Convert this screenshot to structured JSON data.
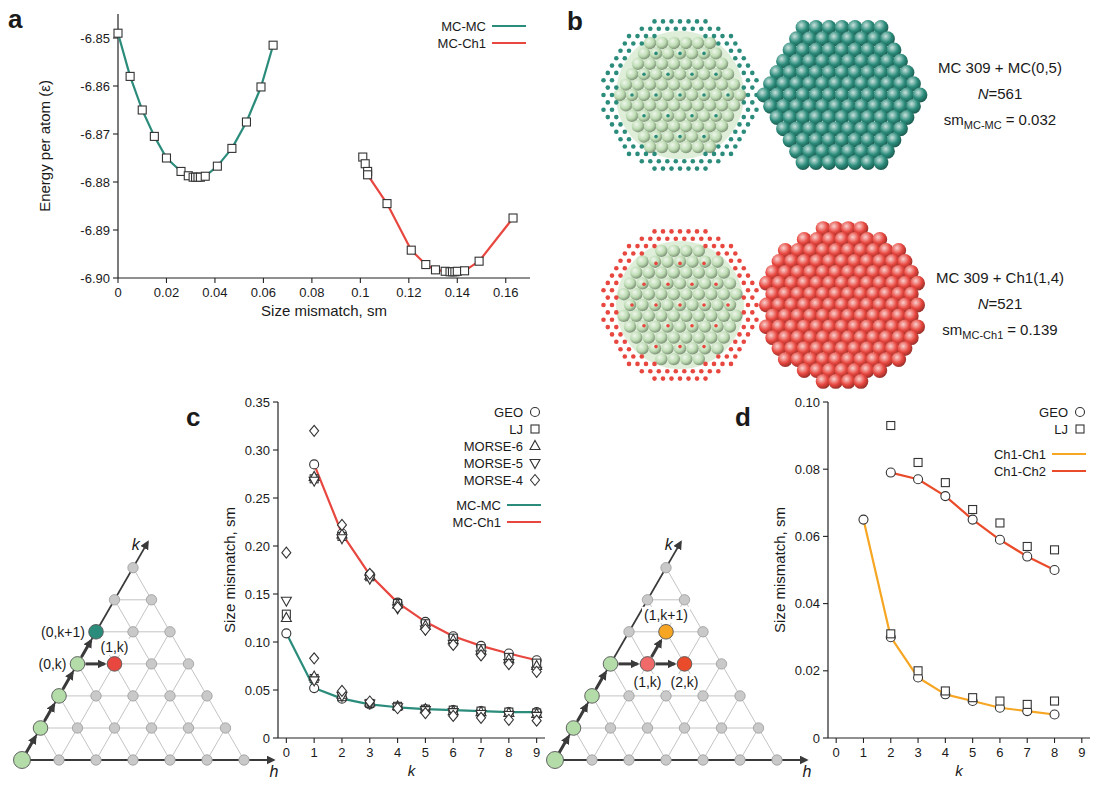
{
  "chart_data": [
    {
      "panel": "a",
      "type": "line",
      "xlabel": "Size mismatch, sm",
      "ylabel": "Energy per atom (ε)",
      "xlim": [
        0,
        0.17
      ],
      "xticks": [
        0,
        0.02,
        0.04,
        0.06,
        0.08,
        0.1,
        0.12,
        0.14,
        0.16
      ],
      "ylim": [
        -6.9,
        -6.845
      ],
      "yticks": [
        -6.85,
        -6.86,
        -6.87,
        -6.88,
        -6.89,
        {
          "value": -6.9,
          "label": "-6.90"
        }
      ],
      "grid": false,
      "legend": "upper right",
      "series": [
        {
          "name": "MC-MC",
          "type": "line",
          "marker": "square",
          "color": "#2b8c7b",
          "x": [
            0,
            0.005,
            0.01,
            0.015,
            0.02,
            0.026,
            0.029,
            0.031,
            0.032,
            0.033,
            0.034,
            0.036,
            0.041,
            0.047,
            0.053,
            0.059,
            0.064
          ],
          "values": [
            -6.849,
            -6.858,
            -6.865,
            -6.8705,
            -6.875,
            -6.8778,
            -6.8787,
            -6.879,
            -6.879,
            -6.879,
            -6.879,
            -6.8788,
            -6.8767,
            -6.873,
            -6.8675,
            -6.8602,
            -6.8515
          ]
        },
        {
          "name": "MC-Ch1",
          "type": "line",
          "marker": "square",
          "color": "#e8473f",
          "x": [
            0.101,
            0.102,
            0.103,
            0.103,
            0.111,
            0.121,
            0.127,
            0.131,
            0.135,
            0.137,
            0.138,
            0.139,
            0.14,
            0.143,
            0.149,
            0.163
          ],
          "values": [
            -6.8748,
            -6.8762,
            -6.8778,
            -6.8785,
            -6.8845,
            -6.8942,
            -6.8972,
            -6.8983,
            -6.8986,
            -6.8987,
            -6.8987,
            -6.8987,
            -6.8986,
            -6.8985,
            -6.8965,
            -6.8875
          ]
        }
      ]
    },
    {
      "panel": "c",
      "type": "line",
      "xlabel": "k",
      "ylabel": "Size mismatch, sm",
      "x": [
        0,
        1,
        2,
        3,
        4,
        5,
        6,
        7,
        8,
        9
      ],
      "xlim": [
        -0.3,
        9.3
      ],
      "xticks": [
        0,
        1,
        2,
        3,
        4,
        5,
        6,
        7,
        8,
        9
      ],
      "ylim": [
        0,
        0.35
      ],
      "yticks": [
        0,
        0.05,
        {
          "value": 0.1,
          "label": "0.10"
        },
        0.15,
        {
          "value": 0.2,
          "label": "0.20"
        },
        0.25,
        {
          "value": 0.3,
          "label": "0.30"
        },
        0.35
      ],
      "grid": false,
      "legend": "upper right",
      "series": [
        {
          "name": "GEO",
          "type": "scatter",
          "marker": "circle",
          "values": [
            0.109,
            0.052,
            0.041,
            0.035,
            0.032,
            0.03,
            0.029,
            0.028,
            0.027,
            0.027
          ],
          "values_mc_ch1": [
            null,
            0.285,
            0.213,
            0.17,
            0.141,
            0.121,
            0.106,
            0.096,
            0.088,
            0.081
          ]
        },
        {
          "name": "LJ",
          "type": "scatter",
          "marker": "square",
          "values": [
            0.129,
            0.062,
            0.043,
            0.036,
            0.033,
            0.03,
            0.029,
            0.028,
            0.027,
            0.026
          ],
          "values_mc_ch1": [
            null,
            0.27,
            0.21,
            0.168,
            0.14,
            0.119,
            0.104,
            0.093,
            0.084,
            0.078
          ]
        },
        {
          "name": "MORSE-6",
          "type": "scatter",
          "marker": "triangle",
          "values": [
            0.125,
            0.064,
            0.045,
            0.037,
            0.033,
            0.03,
            0.028,
            0.027,
            0.026,
            0.025
          ],
          "values_mc_ch1": [
            null,
            0.272,
            0.212,
            0.169,
            0.139,
            0.117,
            0.102,
            0.091,
            0.082,
            0.075
          ]
        },
        {
          "name": "MORSE-5",
          "type": "scatter",
          "marker": "triangle_down",
          "values": [
            0.143,
            0.06,
            0.044,
            0.036,
            0.032,
            0.029,
            0.027,
            0.025,
            0.024,
            0.023
          ],
          "values_mc_ch1": [
            null,
            0.268,
            0.208,
            0.166,
            0.135,
            0.113,
            0.098,
            0.087,
            0.078,
            0.07
          ]
        },
        {
          "name": "MORSE-4",
          "type": "scatter",
          "marker": "diamond",
          "values": [
            0.193,
            0.083,
            0.049,
            0.038,
            0.031,
            0.026,
            0.023,
            0.021,
            0.019,
            0.018
          ],
          "values_mc_ch1": [
            null,
            0.32,
            0.222,
            0.171,
            0.136,
            0.113,
            0.097,
            0.086,
            0.077,
            0.069
          ]
        },
        {
          "name": "MC-MC",
          "type": "line",
          "color": "#2b8c7b",
          "values": [
            0.109,
            0.052,
            0.041,
            0.035,
            0.032,
            0.03,
            0.029,
            0.028,
            0.027,
            0.027
          ]
        },
        {
          "name": "MC-Ch1",
          "type": "line",
          "color": "#e8473f",
          "values": [
            null,
            0.285,
            0.213,
            0.17,
            0.141,
            0.121,
            0.106,
            0.096,
            0.088,
            0.081
          ]
        }
      ]
    },
    {
      "panel": "d",
      "type": "line",
      "xlabel": "k",
      "ylabel": "Size mismatch, sm",
      "x": [
        1,
        2,
        3,
        4,
        5,
        6,
        7,
        8
      ],
      "xlim": [
        -0.3,
        9.3
      ],
      "xticks": [
        0,
        1,
        2,
        3,
        4,
        5,
        6,
        7,
        8,
        9
      ],
      "ylim": [
        0,
        0.1
      ],
      "yticks": [
        0,
        0.02,
        0.04,
        0.06,
        0.08,
        {
          "value": 0.1,
          "label": "0.10"
        }
      ],
      "grid": false,
      "legend": "upper right",
      "series": [
        {
          "name": "GEO",
          "type": "scatter",
          "marker": "circle",
          "values": [
            0.065,
            0.03,
            0.018,
            0.013,
            0.011,
            0.009,
            0.008,
            0.007
          ],
          "values_ch1_ch2": [
            null,
            0.079,
            0.077,
            0.072,
            0.065,
            0.059,
            0.054,
            0.05
          ]
        },
        {
          "name": "LJ",
          "type": "scatter",
          "marker": "square",
          "values": [
            null,
            0.031,
            0.02,
            0.014,
            0.012,
            0.011,
            0.01,
            0.011
          ],
          "values_ch1_ch2": [
            null,
            0.093,
            0.082,
            0.076,
            0.068,
            0.064,
            0.057,
            0.056
          ]
        },
        {
          "name": "Ch1-Ch1",
          "type": "line",
          "color": "#f6a623",
          "values": [
            0.065,
            0.03,
            0.018,
            0.013,
            0.011,
            0.009,
            0.008,
            0.007
          ]
        },
        {
          "name": "Ch1-Ch2",
          "type": "line",
          "color": "#ea4b2a",
          "values": [
            null,
            0.079,
            0.077,
            0.072,
            0.065,
            0.059,
            0.054,
            0.05
          ]
        }
      ]
    }
  ],
  "panel_b": {
    "panel": "b",
    "core_color": "#bddcb3",
    "rows": [
      {
        "title": "MC 309 + MC(0,5)",
        "n_symbol": "N",
        "n_value": "=561",
        "sm_symbol": "sm",
        "sm_sub": "MC-MC",
        "sm_value": "= 0.032",
        "color": "#2b8c7b"
      },
      {
        "title": "MC 309 + Ch1(1,4)",
        "n_symbol": "N",
        "n_value": "=521",
        "sm_symbol": "sm",
        "sm_sub": "MC-Ch1",
        "sm_value": "= 0.139",
        "color": "#e8473f"
      }
    ]
  },
  "diagrams": [
    {
      "h_label": "h",
      "k_label": "k",
      "nodes": [
        {
          "h": 0,
          "k": 0,
          "color": "#b3dca9"
        },
        {
          "h": 0,
          "k": 1,
          "color": "#b3dca9"
        },
        {
          "h": 0,
          "k": 2,
          "color": "#b3dca9"
        },
        {
          "h": 0,
          "k": 3,
          "color": "#b3dca9",
          "label": "(0,k)"
        },
        {
          "h": 0,
          "k": 4,
          "color": "#2b8c7b",
          "label": "(0,k+1)"
        },
        {
          "h": 1,
          "k": 3,
          "color": "#e8473f",
          "label": "(1,k)"
        }
      ],
      "arrows": [
        {
          "from": [
            0,
            0
          ],
          "to": [
            0,
            1
          ]
        },
        {
          "from": [
            0,
            1
          ],
          "to": [
            0,
            2
          ]
        },
        {
          "from": [
            0,
            2
          ],
          "to": [
            0,
            3
          ]
        },
        {
          "from": [
            0,
            3
          ],
          "to": [
            0,
            4
          ]
        },
        {
          "from": [
            0,
            3
          ],
          "to": [
            1,
            3
          ]
        }
      ]
    },
    {
      "h_label": "h",
      "k_label": "k",
      "nodes": [
        {
          "h": 0,
          "k": 0,
          "color": "#b3dca9"
        },
        {
          "h": 0,
          "k": 1,
          "color": "#b3dca9"
        },
        {
          "h": 0,
          "k": 2,
          "color": "#b3dca9"
        },
        {
          "h": 0,
          "k": 3,
          "color": "#b3dca9"
        },
        {
          "h": 1,
          "k": 3,
          "color": "#f06a6a",
          "label": "(1,k)"
        },
        {
          "h": 2,
          "k": 3,
          "color": "#ea4b2a",
          "label": "(2,k)"
        },
        {
          "h": 1,
          "k": 4,
          "color": "#f6a623",
          "label": "(1,k+1)"
        }
      ],
      "arrows": [
        {
          "from": [
            0,
            0
          ],
          "to": [
            0,
            1
          ]
        },
        {
          "from": [
            0,
            1
          ],
          "to": [
            0,
            2
          ]
        },
        {
          "from": [
            0,
            2
          ],
          "to": [
            0,
            3
          ]
        },
        {
          "from": [
            0,
            3
          ],
          "to": [
            1,
            3
          ]
        },
        {
          "from": [
            1,
            3
          ],
          "to": [
            2,
            3
          ]
        },
        {
          "from": [
            1,
            3
          ],
          "to": [
            1,
            4
          ]
        }
      ]
    }
  ]
}
